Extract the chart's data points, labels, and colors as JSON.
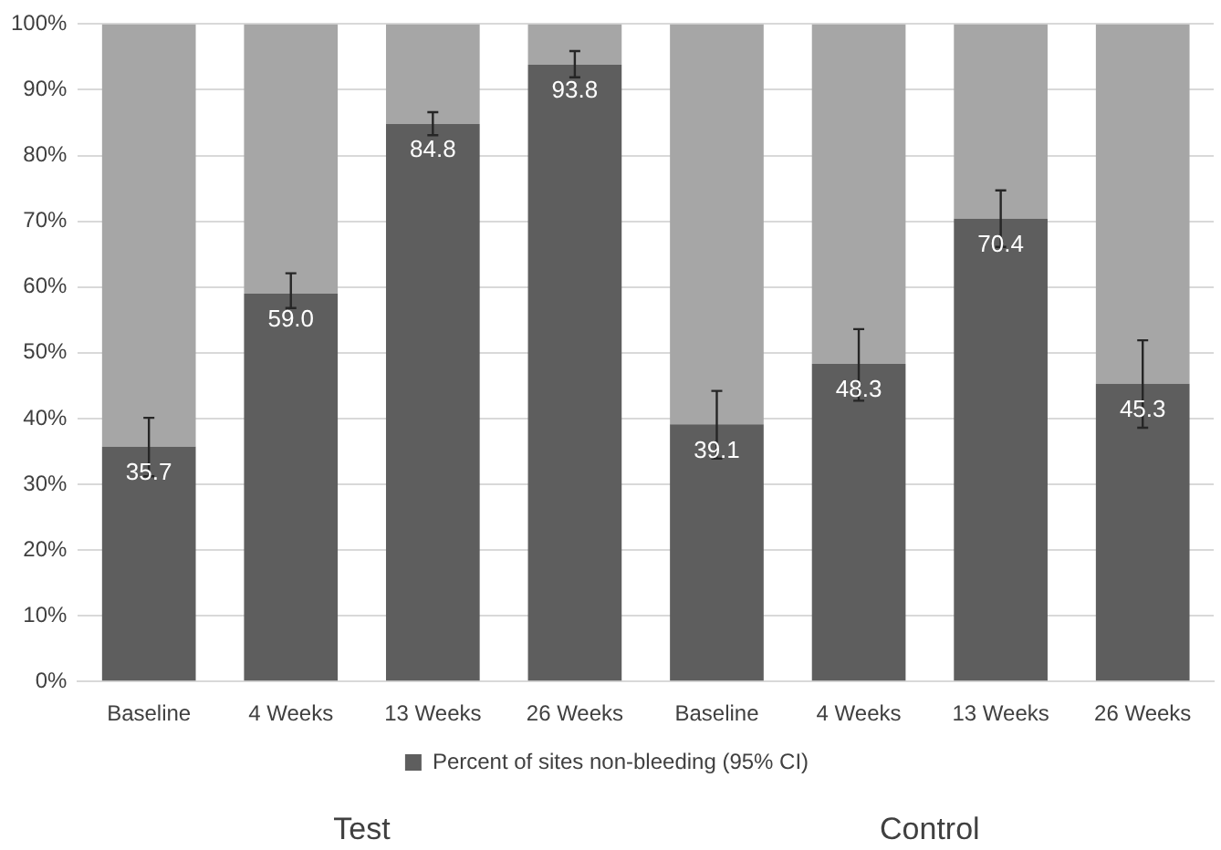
{
  "chart_data": {
    "type": "bar",
    "stacked": true,
    "categories": [
      "Baseline",
      "4 Weeks",
      "13 Weeks",
      "26 Weeks",
      "Baseline",
      "4 Weeks",
      "13 Weeks",
      "26 Weeks"
    ],
    "series": [
      {
        "name": "Percent of sites non-bleeding (95% CI)",
        "color": "#5e5e5e",
        "values": [
          35.7,
          59.0,
          84.8,
          93.8,
          39.1,
          48.3,
          70.4,
          45.3
        ],
        "errors": [
          [
            31.2,
            40.1
          ],
          [
            56.8,
            62.1
          ],
          [
            83.1,
            86.6
          ],
          [
            91.9,
            95.9
          ],
          [
            33.9,
            44.2
          ],
          [
            42.7,
            53.6
          ],
          [
            66.1,
            74.7
          ],
          [
            38.6,
            51.9
          ]
        ],
        "value_labels": [
          "35.7",
          "59.0",
          "84.8",
          "93.8",
          "39.1",
          "48.3",
          "70.4",
          "45.3"
        ]
      },
      {
        "color": "#a6a6a6",
        "values": [
          64.3,
          41.0,
          15.2,
          6.2,
          60.9,
          51.7,
          29.6,
          54.7
        ]
      }
    ],
    "ylim": [
      0,
      100
    ],
    "yticks": [
      {
        "value": 0,
        "label": "0%"
      },
      {
        "value": 10,
        "label": "10%"
      },
      {
        "value": 20,
        "label": "20%"
      },
      {
        "value": 30,
        "label": "30%"
      },
      {
        "value": 40,
        "label": "40%"
      },
      {
        "value": 50,
        "label": "50%"
      },
      {
        "value": 60,
        "label": "60%"
      },
      {
        "value": 70,
        "label": "70%"
      },
      {
        "value": 80,
        "label": "80%"
      },
      {
        "value": 90,
        "label": "90%"
      },
      {
        "value": 100,
        "label": "100%"
      }
    ],
    "grid": "y",
    "legend": "bottom",
    "annotations": [
      "Test",
      "Control"
    ]
  }
}
